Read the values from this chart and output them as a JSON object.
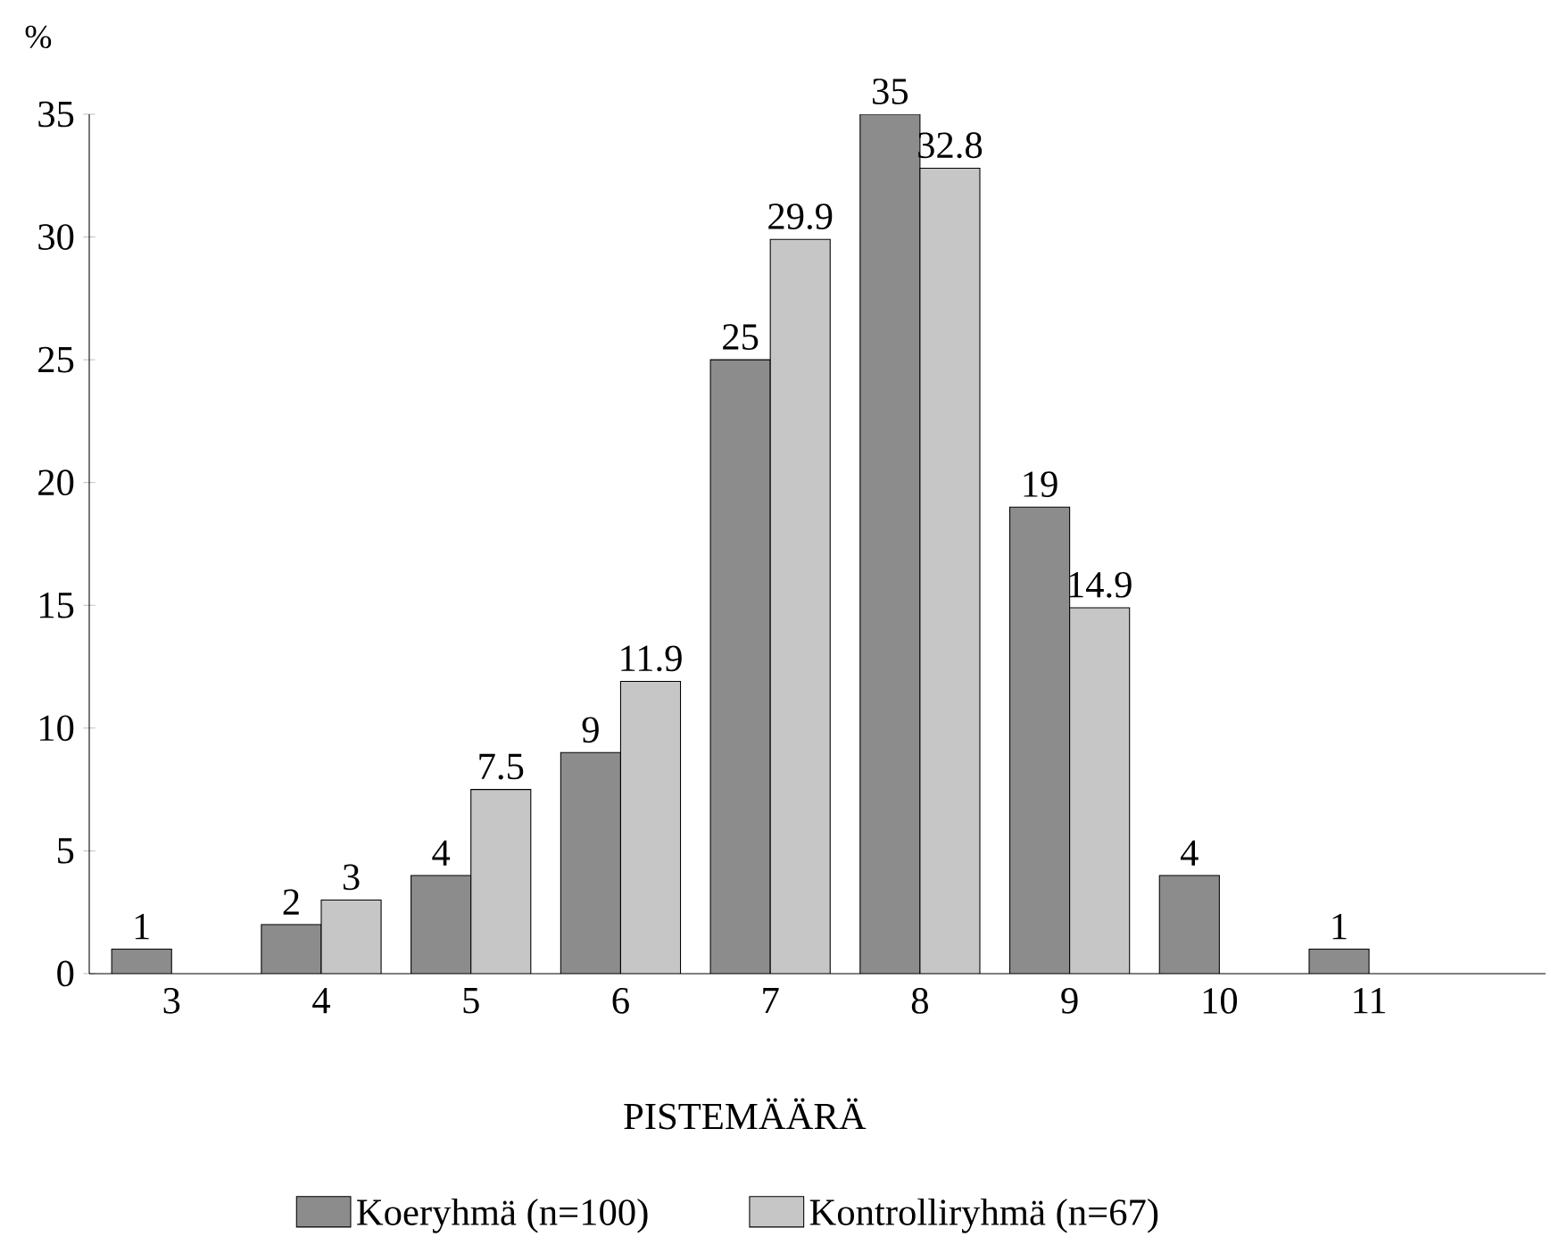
{
  "chart_data": {
    "type": "bar",
    "xlabel": "PISTEMÄÄRÄ",
    "ylabel": "%",
    "categories": [
      "3",
      "4",
      "5",
      "6",
      "7",
      "8",
      "9",
      "10",
      "11"
    ],
    "series": [
      {
        "name": "Koeryhmä (n=100)",
        "color": "#8c8c8c",
        "values": [
          1,
          2,
          4,
          9,
          25,
          35,
          19,
          4,
          1
        ]
      },
      {
        "name": "Kontrolliryhmä (n=67)",
        "color": "#c6c6c6",
        "values": [
          null,
          3,
          7.5,
          11.9,
          29.9,
          32.8,
          14.9,
          null,
          null
        ]
      }
    ],
    "ylim": [
      0,
      35
    ],
    "yticks": [
      0,
      5,
      10,
      15,
      20,
      25,
      30,
      35
    ],
    "data_labels": true,
    "legend": "bottom",
    "grid": false
  }
}
